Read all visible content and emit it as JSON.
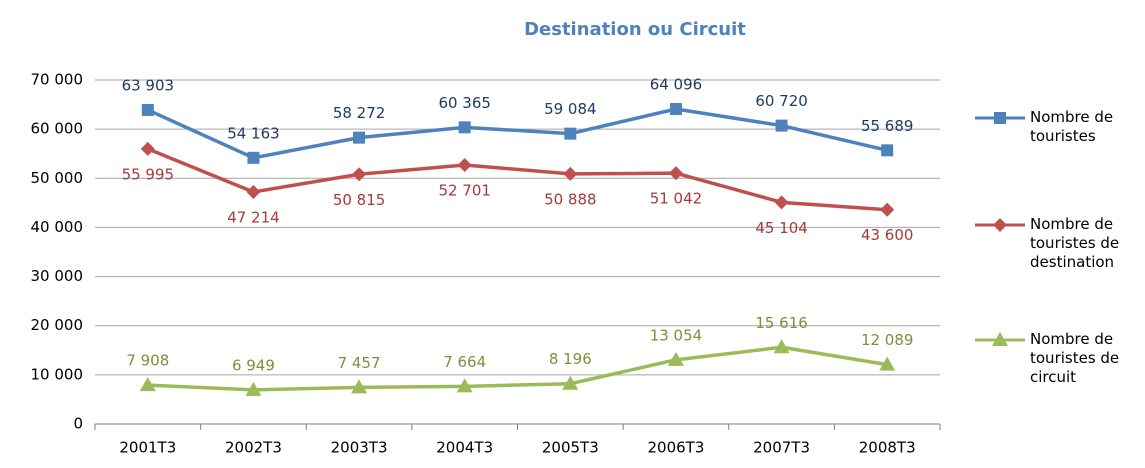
{
  "chart_data": {
    "type": "line",
    "title": "Destination ou Circuit",
    "categories": [
      "2001T3",
      "2002T3",
      "2003T3",
      "2004T3",
      "2005T3",
      "2006T3",
      "2007T3",
      "2008T3"
    ],
    "series": [
      {
        "name": "Nombre de touristes",
        "color": "#4f81bd",
        "label_color": "#1f3b63",
        "marker": "square",
        "label_position": "above",
        "values": [
          63903,
          54163,
          58272,
          60365,
          59084,
          64096,
          60720,
          55689
        ],
        "value_labels": [
          "63 903",
          "54 163",
          "58 272",
          "60 365",
          "59 084",
          "64 096",
          "60 720",
          "55 689"
        ]
      },
      {
        "name": "Nombre de touristes de destination",
        "color": "#c0504d",
        "label_color": "#a33b38",
        "marker": "diamond",
        "label_position": "below",
        "values": [
          55995,
          47214,
          50815,
          52701,
          50888,
          51042,
          45104,
          43600
        ],
        "value_labels": [
          "55 995",
          "47 214",
          "50 815",
          "52 701",
          "50 888",
          "51 042",
          "45 104",
          "43 600"
        ]
      },
      {
        "name": "Nombre de touristes de circuit",
        "color": "#9bbb59",
        "label_color": "#77933c",
        "marker": "triangle",
        "label_position": "above",
        "values": [
          7908,
          6949,
          7457,
          7664,
          8196,
          13054,
          15616,
          12089
        ],
        "value_labels": [
          "7 908",
          "6 949",
          "7 457",
          "7 664",
          "8 196",
          "13 054",
          "15 616",
          "12 089"
        ]
      }
    ],
    "ylim": [
      0,
      70000
    ],
    "yticks": [
      0,
      {
        "value": 10000,
        "label": "10 000"
      },
      {
        "value": 20000,
        "label": "20 000"
      },
      {
        "value": 30000,
        "label": "30 000"
      },
      {
        "value": 40000,
        "label": "40 000"
      },
      {
        "value": 50000,
        "label": "50 000"
      },
      {
        "value": 60000,
        "label": "60 000"
      },
      {
        "value": 70000,
        "label": "70 000"
      }
    ],
    "grid": true,
    "legend": "right"
  }
}
